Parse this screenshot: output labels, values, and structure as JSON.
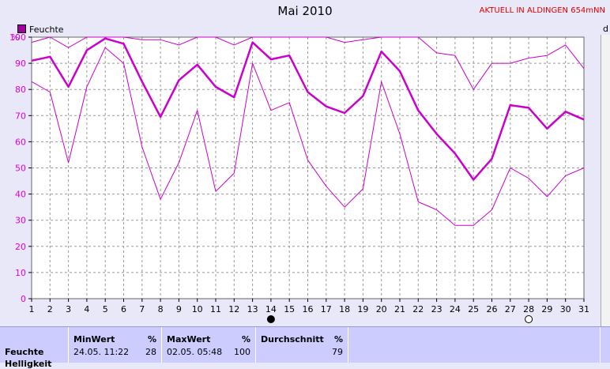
{
  "chart_data": {
    "type": "line",
    "title": "Mai 2010",
    "station": "AKTUELL IN ALDINGEN 654mNN",
    "ylabel": "%",
    "right_label_fragment": "d",
    "ylim": [
      0,
      100
    ],
    "yticks": [
      0,
      10,
      20,
      30,
      40,
      50,
      60,
      70,
      80,
      90,
      100
    ],
    "categories": [
      "1",
      "2",
      "3",
      "4",
      "5",
      "6",
      "7",
      "8",
      "9",
      "10",
      "11",
      "12",
      "13",
      "14",
      "15",
      "16",
      "17",
      "18",
      "19",
      "20",
      "21",
      "22",
      "23",
      "24",
      "25",
      "26",
      "27",
      "28",
      "29",
      "30",
      "31"
    ],
    "legend": [
      "Feuchte"
    ],
    "series": [
      {
        "name": "Feuchte",
        "role": "avg",
        "values": [
          91,
          92.5,
          81,
          95,
          99.5,
          97.5,
          83,
          69.5,
          83.5,
          89.5,
          81,
          77,
          98,
          91.5,
          93,
          79,
          73.5,
          71,
          77.5,
          94.5,
          87,
          72,
          63,
          55.5,
          45.5,
          53.5,
          74,
          73,
          65,
          71.5,
          68.5
        ]
      },
      {
        "role": "max",
        "values": [
          98,
          100,
          96,
          100,
          100,
          100,
          99,
          99,
          97,
          100,
          100,
          97,
          100,
          100,
          100,
          100,
          100,
          98,
          99,
          100,
          100,
          100,
          94,
          93,
          80,
          90,
          90,
          92,
          93,
          97,
          88
        ]
      },
      {
        "role": "min",
        "values": [
          83,
          79,
          52,
          81,
          96,
          90,
          58,
          38,
          52,
          72,
          41,
          48,
          90,
          72,
          75,
          53,
          43,
          35,
          42,
          83,
          63,
          37,
          34,
          28,
          28,
          34,
          50,
          46,
          39,
          47,
          50
        ]
      }
    ],
    "moon_markers": [
      {
        "day": 14,
        "phase": "new-moon"
      },
      {
        "day": 28,
        "phase": "full-moon"
      }
    ],
    "colors": {
      "line": "#cc00cc",
      "grid": "#999999",
      "plot_bg": "#ffffff",
      "page_bg": "#e8e8f8"
    }
  },
  "stats": {
    "row_label": "Feuchte",
    "row_label_cut": "Helligkeit",
    "min": {
      "header": "MinWert",
      "unit": "%",
      "date": "24.05.  11:22",
      "value": "28"
    },
    "max": {
      "header": "MaxWert",
      "unit": "%",
      "date": "02.05.  05:48",
      "value": "100"
    },
    "avg": {
      "header": "Durchschnitt",
      "unit": "%",
      "value": "79"
    }
  }
}
